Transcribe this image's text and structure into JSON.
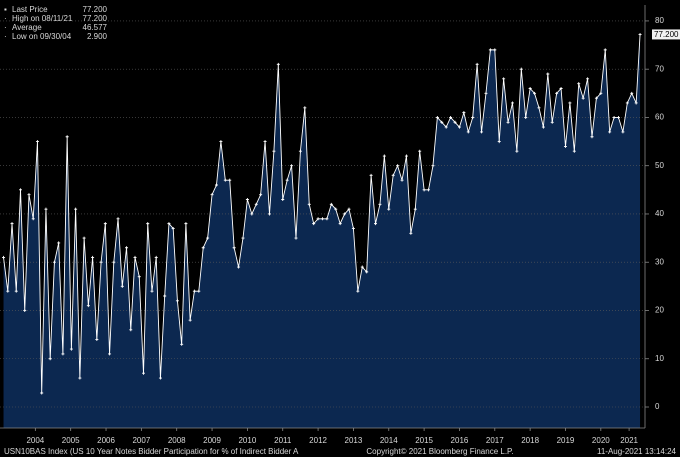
{
  "chart_data": {
    "type": "line",
    "legend": [
      {
        "label": "Last Price",
        "value": "77.200"
      },
      {
        "label": "High on 08/11/21",
        "value": "77.200"
      },
      {
        "label": "Average",
        "value": "46.577"
      },
      {
        "label": "Low on 09/30/04",
        "value": "2.900"
      }
    ],
    "footer_left": "USN10BAS Index (US 10 Year Notes Bidder Participation for % of Indirect Bidder A",
    "footer_center": "Copyright© 2021 Bloomberg Finance L.P.",
    "footer_right": "11-Aug-2021 13:14:24",
    "xlim": [
      2003.5,
      2021.75
    ],
    "xticks": [
      {
        "value": 2004.5,
        "label": "2004"
      },
      {
        "value": 2005.5,
        "label": "2005"
      },
      {
        "value": 2006.5,
        "label": "2006"
      },
      {
        "value": 2007.5,
        "label": "2007"
      },
      {
        "value": 2008.5,
        "label": "2008"
      },
      {
        "value": 2009.5,
        "label": "2009"
      },
      {
        "value": 2010.5,
        "label": "2010"
      },
      {
        "value": 2011.5,
        "label": "2011"
      },
      {
        "value": 2012.5,
        "label": "2012"
      },
      {
        "value": 2013.5,
        "label": "2013"
      },
      {
        "value": 2014.5,
        "label": "2014"
      },
      {
        "value": 2015.5,
        "label": "2015"
      },
      {
        "value": 2016.5,
        "label": "2016"
      },
      {
        "value": 2017.5,
        "label": "2017"
      },
      {
        "value": 2018.5,
        "label": "2018"
      },
      {
        "value": 2019.5,
        "label": "2019"
      },
      {
        "value": 2020.5,
        "label": "2020"
      },
      {
        "value": 2021.3,
        "label": "2021"
      }
    ],
    "ylim": [
      -4.35,
      83.3
    ],
    "yticks": [
      0,
      10,
      20,
      30,
      40,
      50,
      60,
      70,
      80
    ],
    "grid": true,
    "series": [
      {
        "color": "#ffffff",
        "fill": "#0c2850",
        "x": [
          2003.6,
          2003.72,
          2003.84,
          2003.96,
          2004.08,
          2004.2,
          2004.32,
          2004.44,
          2004.56,
          2004.68,
          2004.8,
          2004.92,
          2005.04,
          2005.16,
          2005.28,
          2005.4,
          2005.52,
          2005.64,
          2005.76,
          2005.88,
          2006.0,
          2006.12,
          2006.24,
          2006.36,
          2006.48,
          2006.6,
          2006.72,
          2006.84,
          2006.96,
          2007.08,
          2007.2,
          2007.32,
          2007.44,
          2007.56,
          2007.68,
          2007.8,
          2007.92,
          2008.04,
          2008.16,
          2008.28,
          2008.4,
          2008.52,
          2008.64,
          2008.76,
          2008.88,
          2009,
          2009.125,
          2009.25,
          2009.375,
          2009.5,
          2009.625,
          2009.75,
          2009.875,
          2010,
          2010.125,
          2010.25,
          2010.375,
          2010.5,
          2010.625,
          2010.75,
          2010.875,
          2011,
          2011.125,
          2011.25,
          2011.375,
          2011.5,
          2011.625,
          2011.75,
          2011.875,
          2012,
          2012.125,
          2012.25,
          2012.375,
          2012.5,
          2012.625,
          2012.75,
          2012.875,
          2013,
          2013.125,
          2013.25,
          2013.375,
          2013.5,
          2013.625,
          2013.75,
          2013.875,
          2014,
          2014.125,
          2014.25,
          2014.375,
          2014.5,
          2014.625,
          2014.75,
          2014.875,
          2015,
          2015.125,
          2015.25,
          2015.375,
          2015.5,
          2015.625,
          2015.75,
          2015.875,
          2016,
          2016.125,
          2016.25,
          2016.375,
          2016.5,
          2016.625,
          2016.75,
          2016.875,
          2017,
          2017.125,
          2017.25,
          2017.375,
          2017.5,
          2017.625,
          2017.75,
          2017.875,
          2018,
          2018.125,
          2018.25,
          2018.375,
          2018.5,
          2018.625,
          2018.75,
          2018.875,
          2019,
          2019.125,
          2019.25,
          2019.375,
          2019.5,
          2019.625,
          2019.75,
          2019.875,
          2020,
          2020.125,
          2020.25,
          2020.375,
          2020.5,
          2020.625,
          2020.75,
          2020.875,
          2021,
          2021.125,
          2021.25,
          2021.375,
          2021.5,
          2021.61
        ],
        "values": [
          31,
          24,
          38,
          24,
          45,
          20,
          44,
          39,
          55,
          2.9,
          41,
          10,
          30,
          34,
          11,
          56,
          12,
          41,
          6,
          35,
          21,
          31,
          14,
          30,
          38,
          11,
          30,
          39,
          25,
          33,
          16,
          31,
          27,
          7,
          38,
          24,
          31,
          6,
          23,
          38,
          37,
          22,
          13,
          38,
          18,
          24,
          24,
          33,
          35,
          44,
          46,
          55,
          47,
          47,
          33,
          29,
          35,
          43,
          40,
          42,
          44,
          55,
          40,
          53,
          71,
          43,
          47,
          50,
          35,
          53,
          62,
          42,
          38,
          39,
          39,
          39,
          42,
          41,
          38,
          40,
          41,
          37,
          24,
          29,
          28,
          48,
          38,
          42,
          52,
          41,
          48,
          50,
          47,
          52,
          36,
          41,
          53,
          45,
          45,
          50,
          60,
          59,
          58,
          60,
          59,
          58,
          61,
          57,
          60,
          71,
          57,
          65,
          74,
          74,
          55,
          68,
          59,
          63,
          53,
          70,
          60,
          66,
          65,
          62,
          58,
          69,
          59,
          65,
          66,
          54,
          63,
          53,
          67,
          64,
          68,
          56,
          64,
          65,
          74,
          57,
          60,
          60,
          57,
          63,
          65,
          63,
          77.2
        ]
      }
    ]
  }
}
